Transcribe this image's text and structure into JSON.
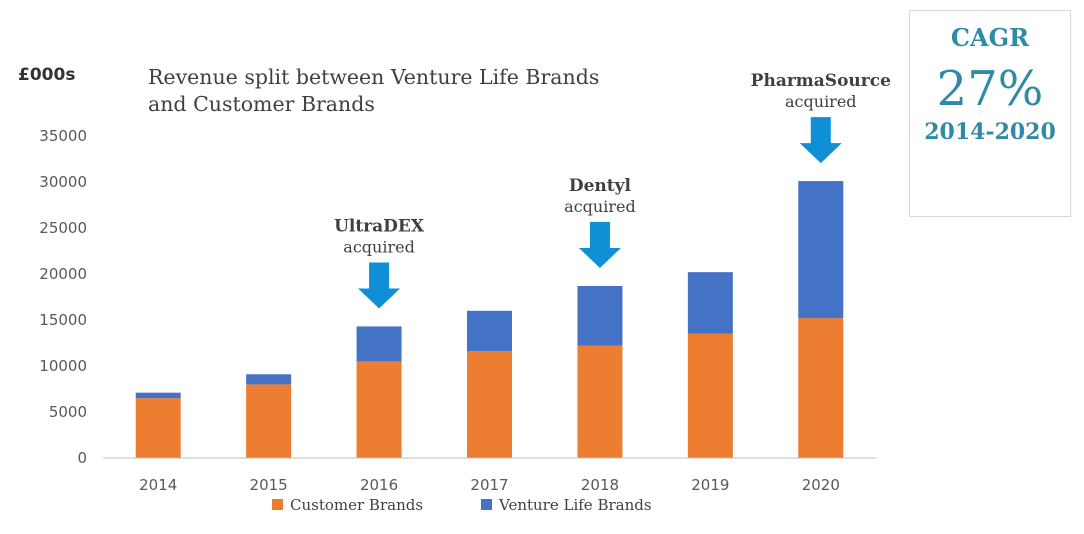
{
  "chart_data": {
    "type": "bar",
    "stacked": true,
    "title": "Revenue split between Venture Life Brands and Customer Brands",
    "ylabel": "£000s",
    "ylim": [
      0,
      35000
    ],
    "yticks": [
      0,
      5000,
      10000,
      15000,
      20000,
      25000,
      30000,
      35000
    ],
    "categories": [
      "2014",
      "2015",
      "2016",
      "2017",
      "2018",
      "2019",
      "2020"
    ],
    "series": [
      {
        "name": "Customer Brands",
        "color": "#ed7d31",
        "values": [
          6500,
          8000,
          10500,
          11600,
          12200,
          13500,
          15200
        ]
      },
      {
        "name": "Venture Life Brands",
        "color": "#4472c4",
        "values": [
          600,
          1100,
          3800,
          4400,
          6500,
          6700,
          14900
        ]
      }
    ],
    "grid": false,
    "legend": "bottom",
    "annotations": [
      {
        "category": "2016",
        "name": "UltraDEX",
        "text": "acquired"
      },
      {
        "category": "2018",
        "name": "Dentyl",
        "text": "acquired"
      },
      {
        "category": "2020",
        "name": "PharmaSource",
        "text": "acquired"
      }
    ],
    "arrow_color": "#0f8fd6"
  },
  "cagr": {
    "label": "CAGR",
    "value": "27%",
    "range": "2014-2020"
  }
}
